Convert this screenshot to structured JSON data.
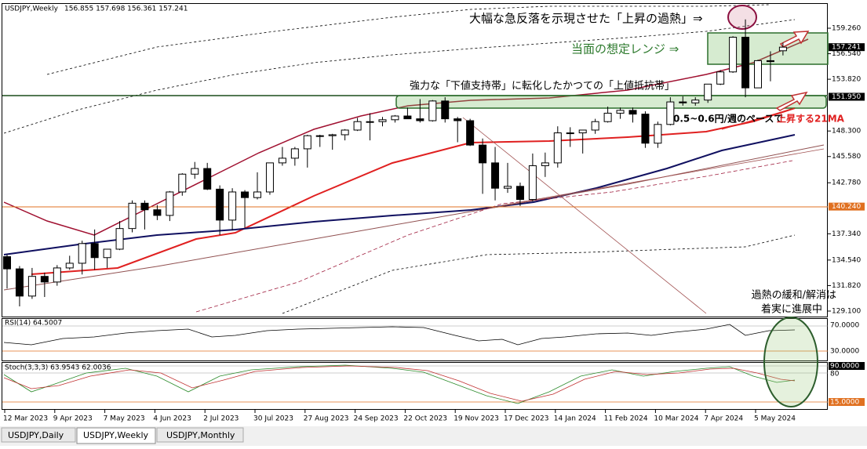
{
  "header": {
    "symbol": "USDJPY,Weekly",
    "ohlc": "156.855 157.698 156.361 157.241"
  },
  "chart_data": {
    "type": "candlestick",
    "categories": [
      "12 Mar 2023",
      null,
      null,
      null,
      "9 Apr 2023",
      null,
      null,
      null,
      "7 May 2023",
      null,
      null,
      null,
      "4 Jun 2023",
      null,
      null,
      null,
      "2 Jul 2023",
      null,
      null,
      null,
      "30 Jul 2023",
      null,
      null,
      null,
      "27 Aug 2023",
      null,
      null,
      null,
      "24 Sep 2023",
      null,
      null,
      null,
      "22 Oct 2023",
      null,
      null,
      null,
      "19 Nov 2023",
      null,
      null,
      null,
      "17 Dec 2023",
      null,
      null,
      null,
      "14 Jan 2024",
      null,
      null,
      null,
      "11 Feb 2024",
      null,
      null,
      null,
      "10 Mar 2024",
      null,
      null,
      null,
      "7 Apr 2024",
      null,
      null,
      null,
      "5 May 2024",
      null,
      null
    ],
    "open": [
      134.9,
      133.6,
      130.7,
      132.8,
      132.2,
      133.7,
      134.2,
      136.3,
      134.8,
      135.7,
      137.9,
      140.6,
      139.9,
      139.3,
      141.8,
      143.7,
      144.3,
      142.1,
      138.8,
      141.8,
      141.2,
      141.8,
      144.9,
      145.4,
      146.4,
      147.8,
      147.8,
      147.9,
      148.4,
      149.3,
      149.3,
      149.5,
      149.9,
      149.6,
      149.4,
      151.5,
      149.6,
      149.4,
      146.8,
      144.9,
      142.2,
      142.4,
      141.0,
      144.6,
      144.9,
      148.1,
      148.1,
      148.4,
      149.3,
      150.2,
      150.5,
      150.1,
      147.0,
      149.0,
      151.4,
      151.3,
      151.6,
      153.3,
      154.6,
      158.3,
      152.9,
      155.8,
      156.855
    ],
    "high": [
      135.1,
      133.9,
      133.7,
      133.2,
      134.0,
      135.0,
      136.6,
      137.8,
      135.5,
      138.7,
      140.9,
      140.9,
      140.4,
      141.9,
      143.8,
      145.0,
      144.9,
      142.5,
      142.2,
      142.0,
      143.9,
      144.9,
      146.6,
      146.6,
      147.9,
      147.9,
      148.0,
      148.5,
      149.7,
      150.2,
      149.8,
      150.0,
      150.8,
      151.7,
      151.6,
      151.9,
      149.8,
      149.6,
      147.5,
      146.6,
      144.9,
      142.8,
      145.9,
      146.0,
      148.8,
      148.7,
      148.3,
      149.6,
      150.9,
      150.8,
      150.8,
      150.4,
      149.3,
      151.9,
      152.0,
      151.9,
      153.3,
      154.8,
      158.4,
      160.2,
      155.9,
      156.8,
      157.698
    ],
    "low": [
      131.5,
      129.6,
      130.4,
      130.6,
      131.8,
      133.5,
      133.0,
      133.5,
      133.7,
      135.6,
      137.5,
      137.8,
      138.8,
      138.7,
      141.4,
      143.2,
      142.0,
      137.2,
      137.7,
      138.0,
      141.0,
      141.5,
      144.6,
      144.6,
      144.4,
      146.6,
      146.3,
      147.3,
      148.3,
      147.3,
      148.8,
      149.2,
      149.6,
      149.2,
      149.3,
      149.2,
      147.1,
      146.7,
      141.6,
      140.9,
      141.7,
      140.3,
      140.8,
      143.4,
      144.4,
      146.6,
      145.9,
      148.0,
      149.2,
      149.6,
      149.2,
      146.5,
      146.5,
      148.9,
      151.0,
      151.0,
      151.3,
      153.2,
      154.5,
      151.9,
      152.9,
      153.6,
      156.361
    ],
    "close": [
      133.6,
      130.7,
      132.8,
      132.2,
      133.7,
      134.2,
      136.3,
      134.8,
      135.7,
      137.9,
      140.6,
      139.9,
      139.3,
      141.8,
      143.7,
      144.3,
      142.1,
      138.8,
      141.8,
      141.2,
      141.8,
      144.9,
      145.4,
      146.4,
      147.8,
      147.8,
      147.9,
      148.4,
      149.3,
      149.3,
      149.5,
      149.9,
      149.6,
      149.4,
      151.5,
      149.6,
      149.4,
      146.8,
      144.9,
      142.2,
      142.4,
      141.0,
      144.6,
      144.9,
      148.1,
      148.1,
      148.4,
      149.3,
      150.2,
      150.5,
      150.1,
      147.0,
      149.0,
      151.4,
      151.3,
      151.6,
      153.3,
      154.6,
      158.3,
      152.9,
      155.8,
      155.7,
      157.241
    ],
    "ylim": [
      128.43,
      161.85
    ],
    "yticks": [
      {
        "value": 159.26,
        "label": "159.260"
      },
      {
        "value": 156.54,
        "label": "156.540"
      },
      {
        "value": 153.82,
        "label": "153.820"
      },
      {
        "value": 148.3,
        "label": "148.300"
      },
      {
        "value": 145.58,
        "label": "145.580"
      },
      {
        "value": 142.78,
        "label": "142.780"
      },
      {
        "value": 137.34,
        "label": "137.340"
      },
      {
        "value": 134.54,
        "label": "134.540"
      },
      {
        "value": 131.82,
        "label": "131.820"
      },
      {
        "value": 129.1,
        "label": "129.100"
      }
    ],
    "price_labels": [
      {
        "value": 157.241,
        "label": "157.241",
        "color": "#000000"
      },
      {
        "value": 151.95,
        "label": "151.950",
        "color": "#000000"
      },
      {
        "value": 140.24,
        "label": "140.240",
        "color": "#e07020"
      }
    ]
  },
  "annotations": {
    "overheat": "大幅な急反落を示現させた「上昇の過熱」⇒",
    "range": "当面の想定レンジ ⇒",
    "support": "強力な「下値支持帯」に転化したかつての「上値抵抗帯」",
    "ma_pace": "0.5~0.6円/週のペースで",
    "ma_rise": "上昇する21MA",
    "cooling_1": "過熱の緩和/解消は",
    "cooling_2": "着実に進展中"
  },
  "rsi": {
    "title": "RSI(14) 64.5007",
    "level_high": "70.0000",
    "level_low": "30.0000"
  },
  "stoch": {
    "title": "Stoch(3,3,3) 63.9543 62.0036",
    "level_high": "90.0000",
    "level_mid": "80",
    "level_low": "15.0000"
  },
  "tabs": [
    "USDJPY,Daily",
    "USDJPY,Weekly",
    "USDJPY,Monthly"
  ]
}
